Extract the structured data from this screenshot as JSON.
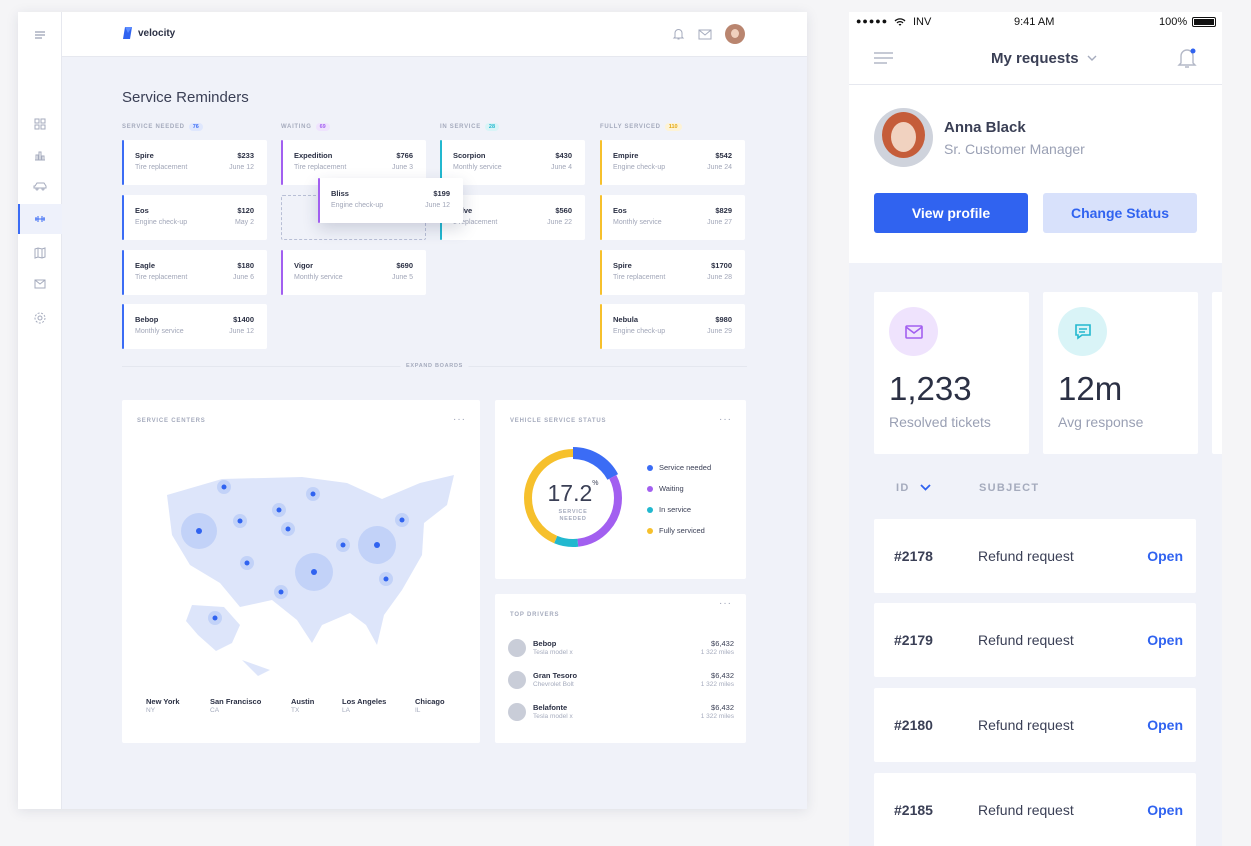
{
  "colors": {
    "accent": "#3063f0",
    "service_needed": "#3b6cf5",
    "waiting": "#a25ff0",
    "in_service": "#22b8cf",
    "fully_serviced": "#f6c02c"
  },
  "desktop": {
    "logo": "velocity",
    "title": "Service Reminders",
    "columns": [
      {
        "label": "SERVICE NEEDED",
        "count": "76",
        "cards": [
          {
            "name": "Spire",
            "price": "$233",
            "sub": "Tire replacement",
            "date": "June 12"
          },
          {
            "name": "Eos",
            "price": "$120",
            "sub": "Engine check-up",
            "date": "May 2"
          },
          {
            "name": "Eagle",
            "price": "$180",
            "sub": "Tire replacement",
            "date": "June 6"
          },
          {
            "name": "Bebop",
            "price": "$1400",
            "sub": "Monthly service",
            "date": "June 12"
          }
        ]
      },
      {
        "label": "WAITING",
        "count": "69",
        "cards": [
          {
            "name": "Expedition",
            "price": "$766",
            "sub": "Tire replacement",
            "date": "June 3"
          },
          {
            "name": "Vigor",
            "price": "$690",
            "sub": "Monthly service",
            "date": "June 5"
          }
        ]
      },
      {
        "label": "IN SERVICE",
        "count": "28",
        "cards": [
          {
            "name": "Scorpion",
            "price": "$430",
            "sub": "Monthly service",
            "date": "June 4"
          },
          {
            "name": "solve",
            "price": "$560",
            "sub": "e replacement",
            "date": "June 22"
          }
        ]
      },
      {
        "label": "FULLY SERVICED",
        "count": "110",
        "cards": [
          {
            "name": "Empire",
            "price": "$542",
            "sub": "Engine check-up",
            "date": "June 24"
          },
          {
            "name": "Eos",
            "price": "$829",
            "sub": "Monthly service",
            "date": "June 27"
          },
          {
            "name": "Spire",
            "price": "$1700",
            "sub": "Tire replacement",
            "date": "June 28"
          },
          {
            "name": "Nebula",
            "price": "$980",
            "sub": "Engine check-up",
            "date": "June 29"
          }
        ]
      }
    ],
    "dragged_card": {
      "name": "Bliss",
      "price": "$199",
      "sub": "Engine check-up",
      "date": "June 12"
    },
    "expand_label": "EXPAND BOARDS",
    "service_centers": {
      "title": "SERVICE CENTERS",
      "more": "···",
      "cities": [
        {
          "name": "New York",
          "state": "NY"
        },
        {
          "name": "San Francisco",
          "state": "CA"
        },
        {
          "name": "Austin",
          "state": "TX"
        },
        {
          "name": "Los Angeles",
          "state": "LA"
        },
        {
          "name": "Chicago",
          "state": "IL"
        }
      ]
    },
    "vehicle_status": {
      "title": "VEHICLE SERVICE STATUS",
      "more": "···",
      "value": "17.2",
      "unit": "%",
      "caption1": "SERVICE",
      "caption2": "NEEDED",
      "legend": [
        "Service needed",
        "Waiting",
        "In service",
        "Fully serviced"
      ],
      "segments": [
        {
          "name": "Service needed",
          "percent": 17.2
        },
        {
          "name": "Waiting",
          "percent": 31
        },
        {
          "name": "In service",
          "percent": 8
        },
        {
          "name": "Fully serviced",
          "percent": 43.8
        }
      ]
    },
    "top_drivers": {
      "title": "TOP DRIVERS",
      "more": "···",
      "drivers": [
        {
          "name": "Bebop",
          "car": "Tesla model x",
          "money": "$6,432",
          "miles": "1 322 miles"
        },
        {
          "name": "Gran Tesoro",
          "car": "Chevrolet Bolt",
          "money": "$6,432",
          "miles": "1 322 miles"
        },
        {
          "name": "Belafonte",
          "car": "Tesla model x",
          "money": "$6,432",
          "miles": "1 322 miles"
        }
      ]
    }
  },
  "mobile": {
    "status": {
      "carrier": "INV",
      "time": "9:41 AM",
      "battery": "100%"
    },
    "header": {
      "title": "My requests"
    },
    "profile": {
      "name": "Anna Black",
      "role": "Sr. Customer Manager",
      "view_label": "View profile",
      "status_label": "Change Status"
    },
    "stats": [
      {
        "value": "1,233",
        "label": "Resolved tickets",
        "icon": "mail-icon"
      },
      {
        "value": "12m",
        "label": "Avg response",
        "icon": "chat-icon"
      }
    ],
    "table": {
      "id_header": "ID",
      "subject_header": "SUBJECT",
      "rows": [
        {
          "id": "#2178",
          "subject": "Refund request",
          "status": "Open"
        },
        {
          "id": "#2179",
          "subject": "Refund request",
          "status": "Open"
        },
        {
          "id": "#2180",
          "subject": "Refund request",
          "status": "Open"
        },
        {
          "id": "#2185",
          "subject": "Refund request",
          "status": "Open"
        }
      ]
    }
  }
}
